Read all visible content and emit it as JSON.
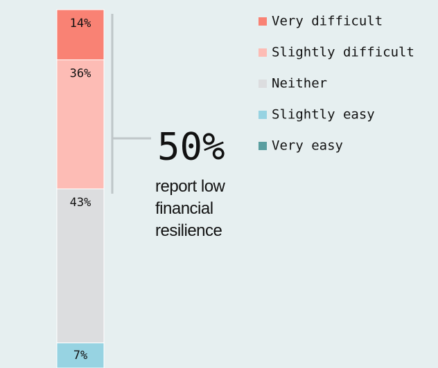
{
  "chart_data": {
    "type": "stacked_bar",
    "ylim": [
      0,
      100
    ],
    "series": [
      {
        "name": "Very difficult",
        "color": "#f98274",
        "values": [
          14
        ],
        "value_labels": [
          "14%"
        ]
      },
      {
        "name": "Slightly difficult",
        "color": "#fdbcb5",
        "values": [
          36
        ],
        "value_labels": [
          "36%"
        ]
      },
      {
        "name": "Neither",
        "color": "#dcdddf",
        "values": [
          43
        ],
        "value_labels": [
          "43%"
        ]
      },
      {
        "name": "Slightly easy",
        "color": "#97d3e2",
        "values": [
          7
        ],
        "value_labels": [
          "7%"
        ]
      },
      {
        "name": "Very easy",
        "color": "#5a9ea0",
        "values": [
          0
        ]
      }
    ],
    "annotation": {
      "value_text": "50%",
      "text": "report low financial resilience"
    }
  }
}
